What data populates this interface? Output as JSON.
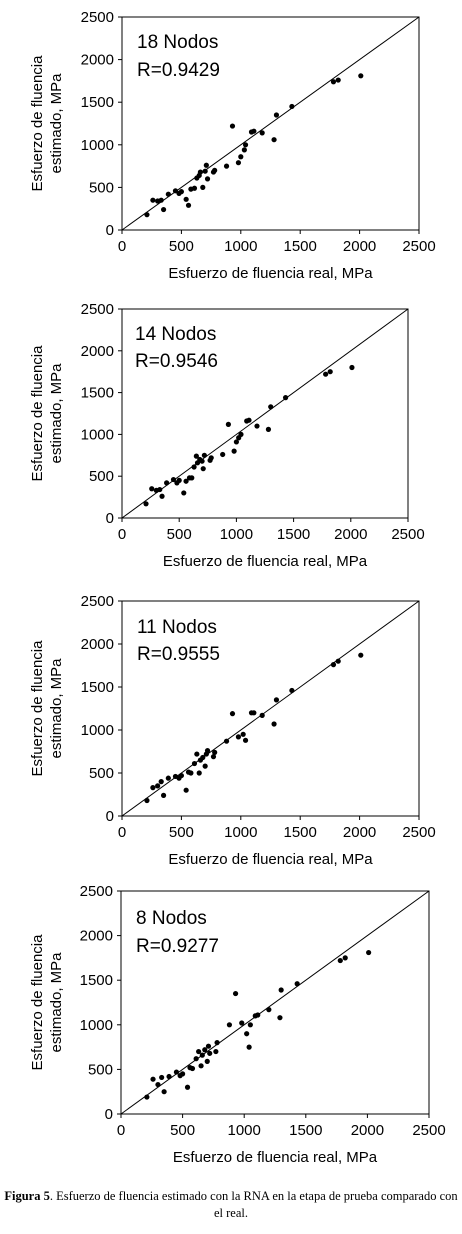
{
  "chart_data": [
    {
      "type": "scatter",
      "annotations": [
        "18 Nodos",
        "R=0.9429"
      ],
      "xlabel": "Esfuerzo de fluencia real, MPa",
      "ylabel": "Esfuerzo de fluencia estimado, MPa",
      "xlim": [
        0,
        2500
      ],
      "ylim": [
        0,
        2500
      ],
      "xticks": [
        0,
        500,
        1000,
        1500,
        2000,
        2500
      ],
      "yticks": [
        0,
        500,
        1000,
        1500,
        2000,
        2500
      ],
      "grid": false,
      "reference_line": "y=x",
      "points": [
        [
          210,
          180
        ],
        [
          260,
          350
        ],
        [
          300,
          340
        ],
        [
          330,
          350
        ],
        [
          350,
          240
        ],
        [
          390,
          420
        ],
        [
          450,
          460
        ],
        [
          480,
          430
        ],
        [
          500,
          450
        ],
        [
          540,
          360
        ],
        [
          560,
          290
        ],
        [
          580,
          480
        ],
        [
          610,
          490
        ],
        [
          630,
          610
        ],
        [
          650,
          640
        ],
        [
          660,
          680
        ],
        [
          680,
          500
        ],
        [
          700,
          690
        ],
        [
          710,
          760
        ],
        [
          720,
          600
        ],
        [
          770,
          680
        ],
        [
          780,
          700
        ],
        [
          880,
          750
        ],
        [
          930,
          1220
        ],
        [
          980,
          790
        ],
        [
          1000,
          860
        ],
        [
          1030,
          940
        ],
        [
          1040,
          1000
        ],
        [
          1090,
          1150
        ],
        [
          1110,
          1160
        ],
        [
          1180,
          1140
        ],
        [
          1280,
          1060
        ],
        [
          1300,
          1350
        ],
        [
          1430,
          1450
        ],
        [
          1780,
          1740
        ],
        [
          1820,
          1760
        ],
        [
          2010,
          1810
        ]
      ]
    },
    {
      "type": "scatter",
      "annotations": [
        "14 Nodos",
        "R=0.9546"
      ],
      "xlabel": "Esfuerzo de fluencia real, MPa",
      "ylabel": "Esfuerzo de fluencia estimado, MPa",
      "xlim": [
        0,
        2500
      ],
      "ylim": [
        0,
        2500
      ],
      "xticks": [
        0,
        500,
        1000,
        1500,
        2000,
        2500
      ],
      "yticks": [
        0,
        500,
        1000,
        1500,
        2000,
        2500
      ],
      "grid": false,
      "reference_line": "y=x",
      "points": [
        [
          210,
          170
        ],
        [
          260,
          350
        ],
        [
          300,
          330
        ],
        [
          330,
          340
        ],
        [
          350,
          260
        ],
        [
          390,
          420
        ],
        [
          450,
          460
        ],
        [
          480,
          420
        ],
        [
          500,
          450
        ],
        [
          540,
          300
        ],
        [
          560,
          440
        ],
        [
          590,
          480
        ],
        [
          610,
          480
        ],
        [
          630,
          610
        ],
        [
          650,
          740
        ],
        [
          660,
          660
        ],
        [
          680,
          700
        ],
        [
          700,
          680
        ],
        [
          710,
          590
        ],
        [
          720,
          750
        ],
        [
          770,
          690
        ],
        [
          780,
          720
        ],
        [
          880,
          760
        ],
        [
          930,
          1120
        ],
        [
          980,
          800
        ],
        [
          1000,
          910
        ],
        [
          1020,
          960
        ],
        [
          1040,
          1000
        ],
        [
          1090,
          1160
        ],
        [
          1110,
          1170
        ],
        [
          1180,
          1100
        ],
        [
          1280,
          1060
        ],
        [
          1300,
          1330
        ],
        [
          1430,
          1440
        ],
        [
          1780,
          1720
        ],
        [
          1820,
          1750
        ],
        [
          2010,
          1800
        ]
      ]
    },
    {
      "type": "scatter",
      "annotations": [
        "11 Nodos",
        "R=0.9555"
      ],
      "xlabel": "Esfuerzo de fluencia real, MPa",
      "ylabel": "Esfuerzo de fluencia estimado, MPa",
      "xlim": [
        0,
        2500
      ],
      "ylim": [
        0,
        2500
      ],
      "xticks": [
        0,
        500,
        1000,
        1500,
        2000,
        2500
      ],
      "yticks": [
        0,
        500,
        1000,
        1500,
        2000,
        2500
      ],
      "grid": false,
      "reference_line": "y=x",
      "points": [
        [
          210,
          180
        ],
        [
          260,
          330
        ],
        [
          300,
          350
        ],
        [
          330,
          400
        ],
        [
          350,
          240
        ],
        [
          390,
          440
        ],
        [
          450,
          460
        ],
        [
          480,
          440
        ],
        [
          500,
          470
        ],
        [
          540,
          300
        ],
        [
          560,
          510
        ],
        [
          580,
          500
        ],
        [
          610,
          610
        ],
        [
          630,
          720
        ],
        [
          650,
          500
        ],
        [
          660,
          650
        ],
        [
          680,
          680
        ],
        [
          700,
          580
        ],
        [
          710,
          720
        ],
        [
          720,
          760
        ],
        [
          770,
          690
        ],
        [
          780,
          740
        ],
        [
          880,
          870
        ],
        [
          930,
          1190
        ],
        [
          980,
          920
        ],
        [
          1020,
          950
        ],
        [
          1040,
          880
        ],
        [
          1090,
          1200
        ],
        [
          1110,
          1200
        ],
        [
          1180,
          1170
        ],
        [
          1280,
          1070
        ],
        [
          1300,
          1350
        ],
        [
          1430,
          1460
        ],
        [
          1780,
          1760
        ],
        [
          1820,
          1800
        ],
        [
          2010,
          1870
        ]
      ]
    },
    {
      "type": "scatter",
      "annotations": [
        "8 Nodos",
        "R=0.9277"
      ],
      "xlabel": "Esfuerzo de fluencia real, MPa",
      "ylabel": "Esfuerzo de fluencia estimado, MPa",
      "xlim": [
        0,
        2500
      ],
      "ylim": [
        0,
        2500
      ],
      "xticks": [
        0,
        500,
        1000,
        1500,
        2000,
        2500
      ],
      "yticks": [
        0,
        500,
        1000,
        1500,
        2000,
        2500
      ],
      "grid": false,
      "reference_line": "y=x",
      "points": [
        [
          210,
          190
        ],
        [
          260,
          390
        ],
        [
          300,
          330
        ],
        [
          330,
          410
        ],
        [
          350,
          250
        ],
        [
          390,
          420
        ],
        [
          450,
          470
        ],
        [
          480,
          430
        ],
        [
          500,
          450
        ],
        [
          540,
          300
        ],
        [
          560,
          520
        ],
        [
          580,
          510
        ],
        [
          610,
          620
        ],
        [
          630,
          700
        ],
        [
          650,
          540
        ],
        [
          660,
          660
        ],
        [
          680,
          720
        ],
        [
          700,
          590
        ],
        [
          710,
          760
        ],
        [
          720,
          680
        ],
        [
          770,
          700
        ],
        [
          780,
          800
        ],
        [
          880,
          1000
        ],
        [
          930,
          1350
        ],
        [
          980,
          1020
        ],
        [
          1020,
          900
        ],
        [
          1040,
          750
        ],
        [
          1050,
          1000
        ],
        [
          1090,
          1100
        ],
        [
          1110,
          1110
        ],
        [
          1200,
          1170
        ],
        [
          1290,
          1080
        ],
        [
          1300,
          1390
        ],
        [
          1430,
          1460
        ],
        [
          1780,
          1720
        ],
        [
          1820,
          1750
        ],
        [
          2010,
          1810
        ]
      ]
    }
  ],
  "caption": {
    "label": "Figura 5",
    "text": ". Esfuerzo de fluencia estimado con la RNA en la etapa de prueba comparado con el real."
  }
}
